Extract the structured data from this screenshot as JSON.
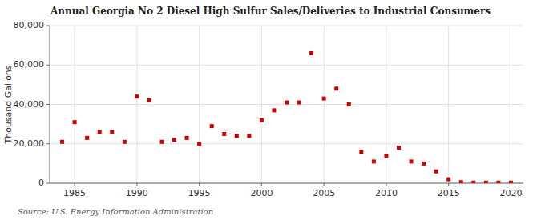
{
  "chart_data": {
    "type": "scatter",
    "title": "Annual Georgia No 2 Diesel High Sulfur Sales/Deliveries to Industrial Consumers",
    "y_label": "Thousand Gallons",
    "source": "Source: U.S. Energy Information Administration",
    "color": "#cc0000",
    "marker": "square",
    "grid": true,
    "xlim": [
      1983,
      2021
    ],
    "ylim": [
      0,
      80000
    ],
    "xticks": [
      1985,
      1990,
      1995,
      2000,
      2005,
      2010,
      2015,
      2020
    ],
    "yticks": [
      0,
      {
        "value": 20000,
        "label": "20,000"
      },
      {
        "value": 40000,
        "label": "40,000"
      },
      {
        "value": 60000,
        "label": "60,000"
      },
      {
        "value": 80000,
        "label": "80,000"
      }
    ],
    "x": [
      1984,
      1985,
      1986,
      1987,
      1988,
      1989,
      1990,
      1991,
      1992,
      1993,
      1994,
      1995,
      1996,
      1997,
      1998,
      1999,
      2000,
      2001,
      2002,
      2003,
      2004,
      2005,
      2006,
      2007,
      2008,
      2009,
      2010,
      2011,
      2012,
      2013,
      2014,
      2015,
      2016,
      2017,
      2018,
      2019,
      2020
    ],
    "values": [
      21000,
      31000,
      23000,
      26000,
      26000,
      21000,
      44000,
      42000,
      21000,
      22000,
      23000,
      20000,
      29000,
      25000,
      24000,
      24000,
      32000,
      37000,
      41000,
      41000,
      66000,
      43000,
      48000,
      40000,
      16000,
      11000,
      14000,
      18000,
      11000,
      10000,
      6000,
      2000,
      500,
      300,
      300,
      300,
      300
    ]
  }
}
